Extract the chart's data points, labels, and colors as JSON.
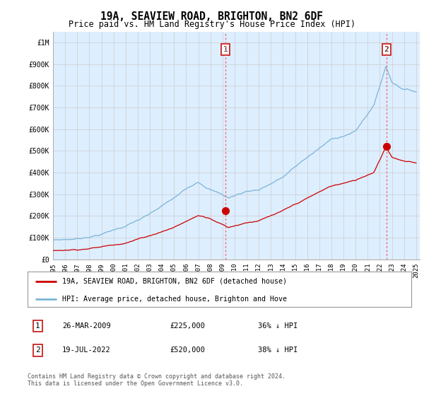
{
  "title": "19A, SEAVIEW ROAD, BRIGHTON, BN2 6DF",
  "subtitle": "Price paid vs. HM Land Registry's House Price Index (HPI)",
  "hpi_color": "#7ab4d8",
  "price_color": "#cc0000",
  "vline_color": "#e87070",
  "plot_bg": "#ddeeff",
  "ylim": [
    0,
    1050000
  ],
  "yticks": [
    0,
    100000,
    200000,
    300000,
    400000,
    500000,
    600000,
    700000,
    800000,
    900000,
    1000000
  ],
  "ytick_labels": [
    "£0",
    "£100K",
    "£200K",
    "£300K",
    "£400K",
    "£500K",
    "£600K",
    "£700K",
    "£800K",
    "£900K",
    "£1M"
  ],
  "sale1_year": 2009.23,
  "sale1_price": 225000,
  "sale1_label": "1",
  "sale2_year": 2022.55,
  "sale2_price": 520000,
  "sale2_label": "2",
  "legend_line1": "19A, SEAVIEW ROAD, BRIGHTON, BN2 6DF (detached house)",
  "legend_line2": "HPI: Average price, detached house, Brighton and Hove",
  "table_row1": [
    "1",
    "26-MAR-2009",
    "£225,000",
    "36% ↓ HPI"
  ],
  "table_row2": [
    "2",
    "19-JUL-2022",
    "£520,000",
    "38% ↓ HPI"
  ],
  "footer": "Contains HM Land Registry data © Crown copyright and database right 2024.\nThis data is licensed under the Open Government Licence v3.0.",
  "background_color": "#ffffff",
  "grid_color": "#cccccc"
}
